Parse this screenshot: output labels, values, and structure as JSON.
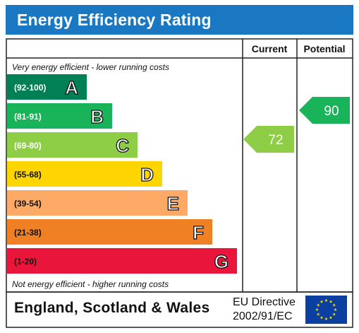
{
  "title": "Energy Efficiency Rating",
  "chart_data": {
    "type": "bar",
    "columns": [
      "Current",
      "Potential"
    ],
    "top_note": "Very energy efficient - lower running costs",
    "bottom_note": "Not energy efficient - higher running costs",
    "bands": [
      {
        "letter": "A",
        "range": "(92-100)",
        "color": "#008054"
      },
      {
        "letter": "B",
        "range": "(81-91)",
        "color": "#19b459"
      },
      {
        "letter": "C",
        "range": "(69-80)",
        "color": "#8dce46"
      },
      {
        "letter": "D",
        "range": "(55-68)",
        "color": "#ffd500"
      },
      {
        "letter": "E",
        "range": "(39-54)",
        "color": "#fcaa65"
      },
      {
        "letter": "F",
        "range": "(21-38)",
        "color": "#ef8023"
      },
      {
        "letter": "G",
        "range": "(1-20)",
        "color": "#e9153b"
      }
    ],
    "current": {
      "value": 72,
      "band": "C",
      "color": "#8dce46"
    },
    "potential": {
      "value": 90,
      "band": "B",
      "color": "#19b459"
    }
  },
  "footer": {
    "region": "England, Scotland & Wales",
    "directive_line1": "EU Directive",
    "directive_line2": "2002/91/EC"
  }
}
